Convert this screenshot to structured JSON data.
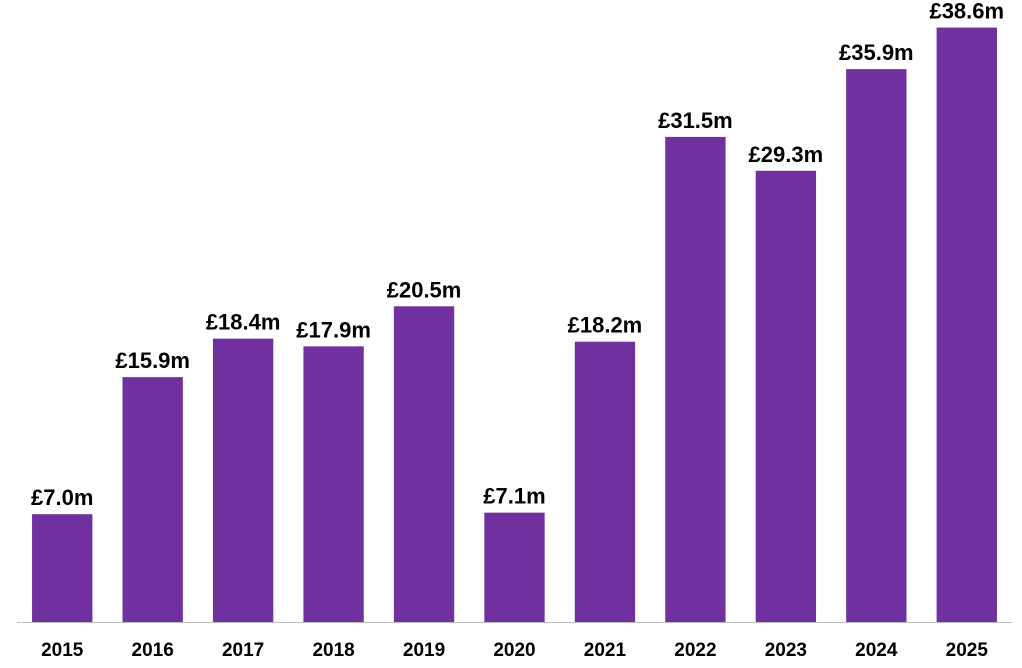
{
  "chart_data": {
    "type": "bar",
    "categories": [
      "2015",
      "2016",
      "2017",
      "2018",
      "2019",
      "2020",
      "2021",
      "2022",
      "2023",
      "2024",
      "2025"
    ],
    "values": [
      7.0,
      15.9,
      18.4,
      17.9,
      20.5,
      7.1,
      18.2,
      31.5,
      29.3,
      35.9,
      38.6
    ],
    "data_labels": [
      "£7.0m",
      "£15.9m",
      "£18.4m",
      "£17.9m",
      "£20.5m",
      "£7.1m",
      "£18.2m",
      "£31.5m",
      "£29.3m",
      "£35.9m",
      "£38.6m"
    ],
    "title": "",
    "xlabel": "",
    "ylabel": "",
    "ylim": [
      0,
      40
    ],
    "grid": false,
    "legend": "none",
    "colors": {
      "bar": "#7030A0",
      "axis": "#bfbfbf",
      "text": "#000000"
    }
  }
}
